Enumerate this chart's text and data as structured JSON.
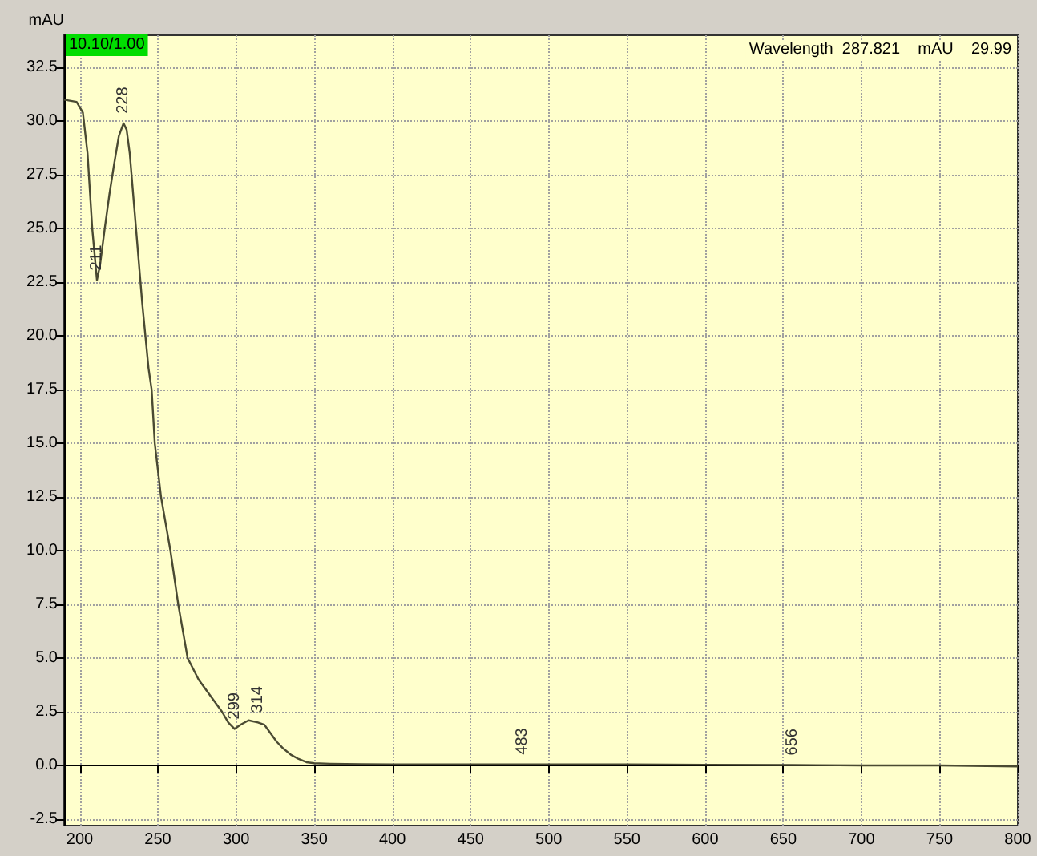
{
  "chart_data": {
    "type": "line",
    "ylabel": "mAU",
    "x": [
      190,
      198,
      202,
      205,
      208,
      211,
      213,
      216,
      219,
      222,
      225,
      228,
      230,
      232,
      236,
      240,
      244,
      246,
      248,
      252,
      258,
      263,
      269,
      276,
      284,
      291,
      295,
      299,
      303,
      308,
      314,
      318,
      322,
      326,
      330,
      335,
      340,
      345,
      350,
      360,
      380,
      400,
      450,
      483,
      500,
      550,
      600,
      656,
      700,
      750,
      800
    ],
    "values": [
      31,
      30.9,
      30.4,
      28.5,
      25,
      22.6,
      23.3,
      25,
      26.6,
      28,
      29.3,
      29.9,
      29.6,
      28.5,
      25,
      21.5,
      18.5,
      17.5,
      15,
      12.5,
      10,
      7.5,
      5,
      4,
      3.2,
      2.5,
      2,
      1.7,
      1.9,
      2.1,
      2,
      1.9,
      1.5,
      1.1,
      0.8,
      0.5,
      0.3,
      0.15,
      0.1,
      0.08,
      0.06,
      0.05,
      0.05,
      0.05,
      0.05,
      0.05,
      0.03,
      0.02,
      0.0,
      0.0,
      -0.05
    ],
    "color": "#4a4a32",
    "line_style": "solid",
    "marker": "none",
    "xlim": [
      190,
      800
    ],
    "xticks": [
      200,
      250,
      300,
      350,
      400,
      450,
      500,
      550,
      600,
      650,
      700,
      750,
      800
    ],
    "ylim": [
      -2.8,
      34
    ],
    "yticks": [
      {
        "value": -2.5,
        "label": "-2.5"
      },
      {
        "value": 0,
        "label": "0.0"
      },
      {
        "value": 2.5,
        "label": "2.5"
      },
      {
        "value": 5,
        "label": "5.0"
      },
      {
        "value": 7.5,
        "label": "7.5"
      },
      {
        "value": 10,
        "label": "10.0"
      },
      {
        "value": 12.5,
        "label": "12.5"
      },
      {
        "value": 15,
        "label": "15.0"
      },
      {
        "value": 17.5,
        "label": "17.5"
      },
      {
        "value": 20,
        "label": "20.0"
      },
      {
        "value": 22.5,
        "label": "22.5"
      },
      {
        "value": 25,
        "label": "25.0"
      },
      {
        "value": 27.5,
        "label": "27.5"
      },
      {
        "value": 30,
        "label": "30.0"
      },
      {
        "value": 32.5,
        "label": "32.5"
      }
    ],
    "grid": true,
    "annotations": [
      "10.10/1.00",
      "Wavelength  287.821    mAU    29.99",
      {
        "text": "211",
        "x": 211,
        "y": 22.6
      },
      {
        "text": "228",
        "x": 228,
        "y": 29.9
      },
      {
        "text": "299",
        "x": 299,
        "y": 1.7
      },
      {
        "text": "314",
        "x": 314,
        "y": 2
      },
      {
        "text": "483",
        "x": 483,
        "y": 0.05
      },
      {
        "text": "656",
        "x": 656,
        "y": 0.02
      }
    ]
  }
}
